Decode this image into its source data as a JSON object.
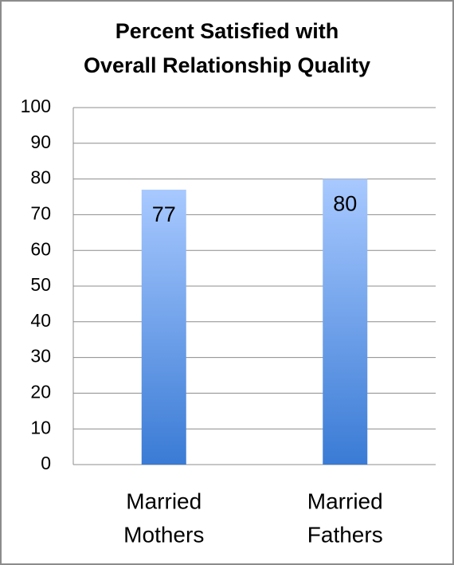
{
  "chart_data": {
    "type": "bar",
    "title": [
      "Percent Satisfied with",
      "Overall Relationship Quality"
    ],
    "categories": [
      [
        "Married",
        "Mothers"
      ],
      [
        "Married",
        "Fathers"
      ]
    ],
    "values": [
      77,
      80
    ],
    "color": [
      "#a8c9ff",
      "#3a7bd5"
    ],
    "ylim": [
      0,
      100
    ],
    "yticks": [
      0,
      10,
      20,
      30,
      40,
      50,
      60,
      70,
      80,
      90,
      100
    ],
    "grid": true
  }
}
